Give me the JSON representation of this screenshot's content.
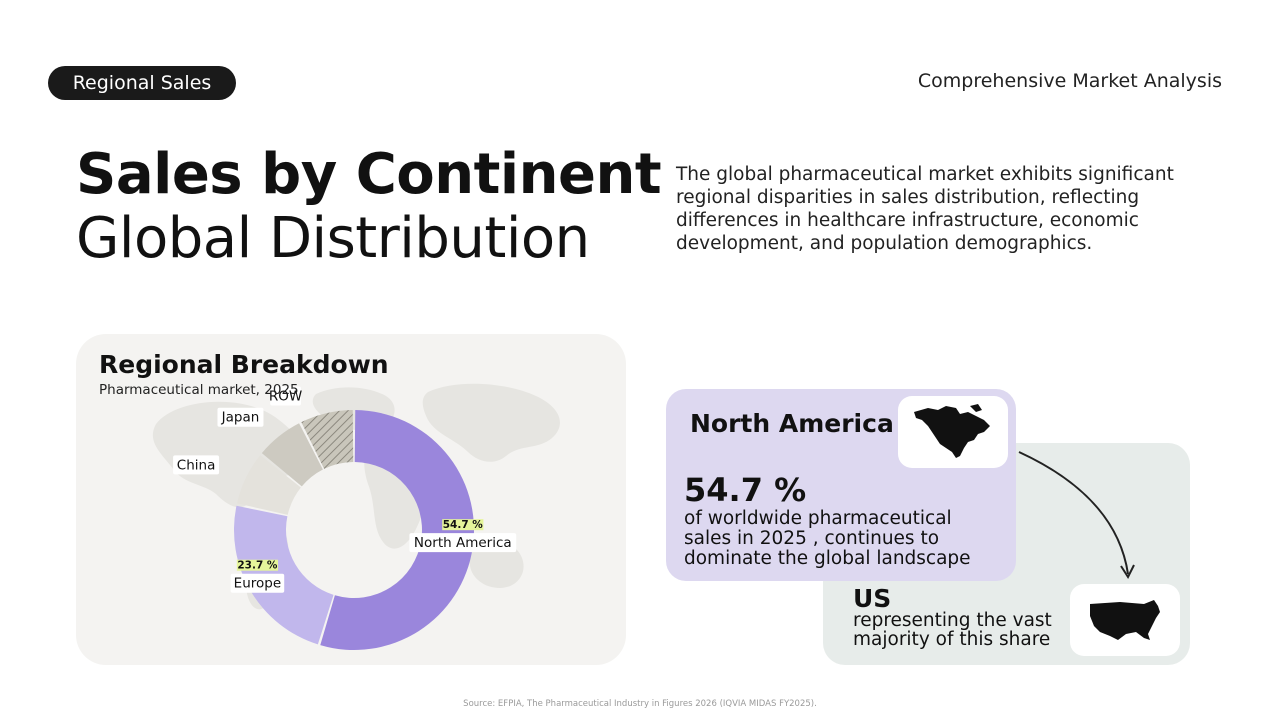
{
  "header": {
    "pill_label": "Regional Sales",
    "right_label": "Comprehensive Market Analysis"
  },
  "title": {
    "line1": "Sales by Continent",
    "line2": "Global Distribution"
  },
  "intro": "The global pharmaceutical market exhibits significant regional disparities in sales distribution, reflecting differences in healthcare infrastructure, economic development, and population demographics.",
  "breakdown": {
    "title": "Regional Breakdown",
    "subtitle": "Pharmaceutical market, 2025"
  },
  "chart_data": {
    "type": "pie",
    "title": "Regional Breakdown",
    "subtitle": "Pharmaceutical market, 2025",
    "categories": [
      "North America",
      "Europe",
      "China",
      "Japan",
      "ROW"
    ],
    "values": [
      54.7,
      23.7,
      7.5,
      6.7,
      7.4
    ],
    "value_labels": [
      "54.7 %",
      "23.7 %",
      "",
      "",
      ""
    ],
    "colors": [
      "#9a86dc",
      "#c1b7ec",
      "#e4e2dc",
      "#cdcac1",
      "#c4c1b5"
    ],
    "hatched": [
      false,
      false,
      false,
      false,
      true
    ],
    "donut": true,
    "legend": "none"
  },
  "highlight": {
    "region": "North America",
    "value": "54.7 %",
    "description": "of worldwide pharmaceutical sales in 2025 , continues to dominate the global landscape",
    "map_icon": "north-america-map-icon"
  },
  "us": {
    "title": "US",
    "description": "representing the vast majority of this share",
    "map_icon": "usa-map-icon"
  },
  "colors": {
    "accent_highlight": "#e5f59a",
    "lavender": "#ddd8f0",
    "dark": "#1a1a1a"
  },
  "source": "Source: EFPIA, The Pharmaceutical Industry in Figures 2026 (IQVIA MIDAS FY2025)."
}
